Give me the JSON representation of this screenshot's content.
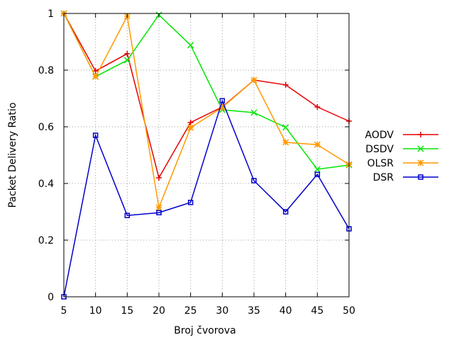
{
  "chart_data": {
    "type": "line",
    "title": "",
    "xlabel": "Broj čvorova",
    "ylabel": "Packet Delivery Ratio",
    "x": [
      5,
      10,
      15,
      20,
      25,
      30,
      35,
      40,
      45,
      50
    ],
    "xlim": [
      5,
      50
    ],
    "ylim": [
      0,
      1
    ],
    "x_ticks": [
      "5",
      "10",
      "15",
      "20",
      "25",
      "30",
      "35",
      "40",
      "45",
      "50"
    ],
    "y_ticks": [
      "0",
      "0.2",
      "0.4",
      "0.6",
      "0.8",
      "1"
    ],
    "grid": true,
    "legend_position": "right",
    "series": [
      {
        "name": "AODV",
        "color": "#e60000",
        "marker": "plus",
        "values": [
          1.0,
          0.797,
          0.858,
          0.42,
          0.615,
          0.67,
          0.765,
          0.748,
          0.67,
          0.62
        ]
      },
      {
        "name": "DSDV",
        "color": "#00e600",
        "marker": "cross",
        "values": [
          1.0,
          0.777,
          0.835,
          0.995,
          0.888,
          0.66,
          0.65,
          0.598,
          0.45,
          0.465
        ]
      },
      {
        "name": "OLSR",
        "color": "#ff9900",
        "marker": "star",
        "values": [
          1.0,
          0.777,
          0.99,
          0.315,
          0.597,
          0.668,
          0.765,
          0.545,
          0.537,
          0.467
        ]
      },
      {
        "name": "DSR",
        "color": "#0000cc",
        "marker": "square",
        "values": [
          0.0,
          0.57,
          0.287,
          0.297,
          0.333,
          0.692,
          0.41,
          0.3,
          0.432,
          0.24
        ]
      }
    ]
  }
}
